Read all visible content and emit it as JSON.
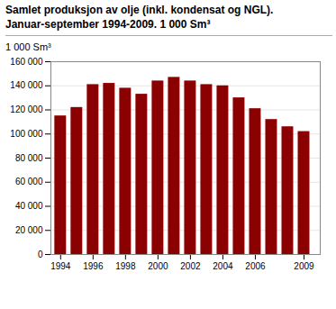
{
  "chart_data": {
    "type": "bar",
    "title": "Samlet produksjon av olje (inkl. kondensat og NGL).",
    "subtitle": "Januar-september 1994-2009. 1 000 Sm³",
    "ylabel": "1 000 Sm³",
    "x": [
      1994,
      1995,
      1996,
      1997,
      1998,
      1999,
      2000,
      2001,
      2002,
      2003,
      2004,
      2005,
      2006,
      2007,
      2008,
      2009
    ],
    "values": [
      115000,
      122000,
      141000,
      142000,
      138000,
      133000,
      144000,
      147000,
      144000,
      141000,
      140000,
      130000,
      121000,
      112000,
      106000,
      102000
    ],
    "color": "#8B0000",
    "xlim": [
      1993.4,
      2010.0
    ],
    "xticks": [
      1994,
      1996,
      1998,
      2000,
      2002,
      2004,
      2006,
      2009
    ],
    "ylim": [
      0,
      160000
    ],
    "yticks": [
      0,
      {
        "value": 20000,
        "label": "20 000"
      },
      {
        "value": 40000,
        "label": "40 000"
      },
      {
        "value": 60000,
        "label": "60 000"
      },
      {
        "value": 80000,
        "label": "80 000"
      },
      {
        "value": 100000,
        "label": "100 000"
      },
      {
        "value": 120000,
        "label": "120 000"
      },
      {
        "value": 140000,
        "label": "140 000"
      },
      {
        "value": 160000,
        "label": "160 000"
      }
    ],
    "grid": true
  }
}
